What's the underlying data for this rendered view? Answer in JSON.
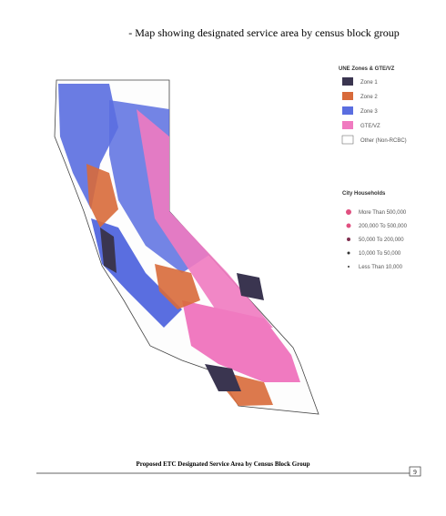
{
  "header": {
    "title": "- Map showing designated service area by census block group"
  },
  "legend_zones": {
    "title": "UNE Zones & GTE/VZ",
    "items": [
      "Zone 1",
      "Zone 2",
      "Zone 3",
      "GTE/VZ",
      "Other (Non-RCBC)"
    ]
  },
  "legend_cities": {
    "title": "City Households",
    "items": [
      "More Than 500,000",
      "200,000 To 500,000",
      "50,000 To 200,000",
      "10,000 To 50,000",
      "Less Than 10,000"
    ]
  },
  "footer": {
    "caption": "Proposed ETC Designated Service Area by Census Block Group",
    "page": "9"
  }
}
